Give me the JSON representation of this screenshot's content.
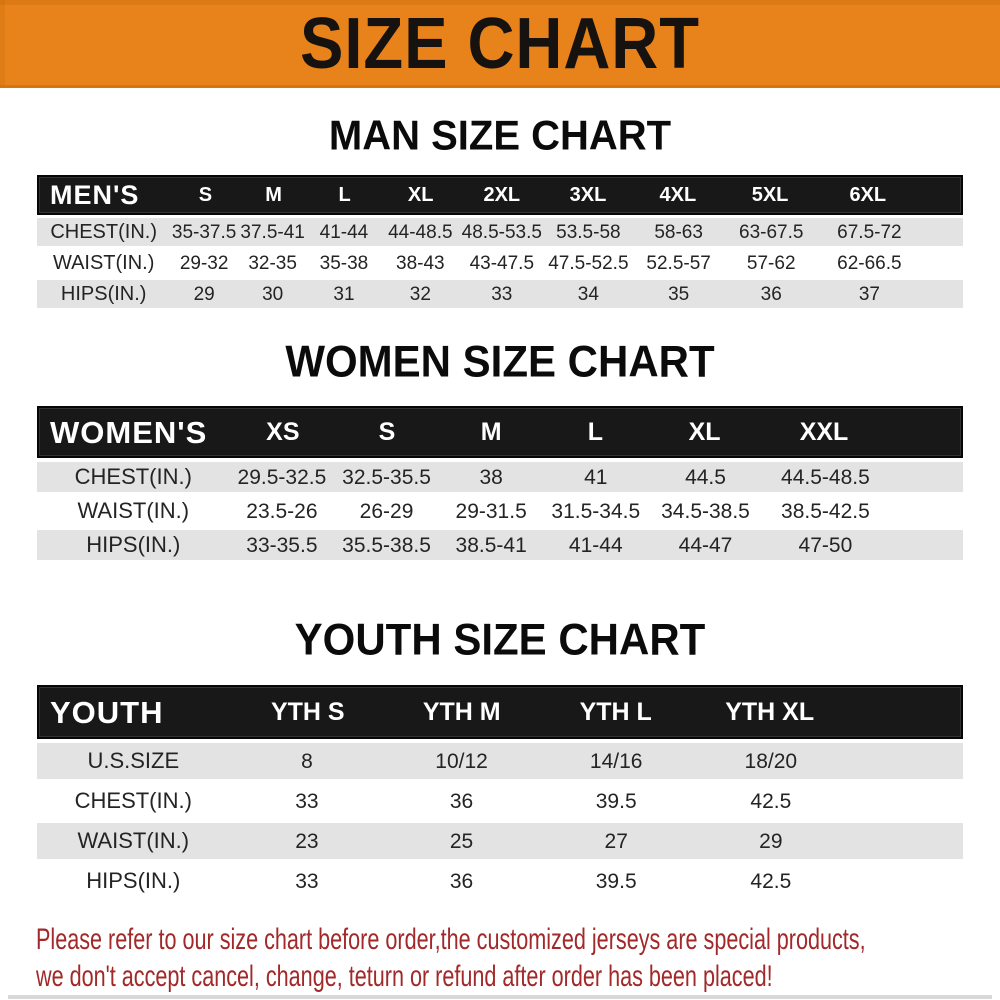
{
  "banner": {
    "title": "SIZE CHART"
  },
  "colors": {
    "banner_orange": "#e8821b",
    "header_black": "#181818",
    "row_gray": "#e3e3e3",
    "disclaimer_red": "#a22929"
  },
  "chart_data": [
    {
      "type": "table",
      "id": "men",
      "title": "MAN SIZE CHART",
      "header_label": "MEN'S",
      "sizes": [
        "S",
        "M",
        "L",
        "XL",
        "2XL",
        "3XL",
        "4XL",
        "5XL",
        "6XL"
      ],
      "rows": [
        {
          "label": "CHEST(IN.)",
          "values": [
            "35-37.5",
            "37.5-41",
            "41-44",
            "44-48.5",
            "48.5-53.5",
            "53.5-58",
            "58-63",
            "63-67.5",
            "67.5-72"
          ]
        },
        {
          "label": "WAIST(IN.)",
          "values": [
            "29-32",
            "32-35",
            "35-38",
            "38-43",
            "43-47.5",
            "47.5-52.5",
            "52.5-57",
            "57-62",
            "62-66.5"
          ]
        },
        {
          "label": "HIPS(IN.)",
          "values": [
            "29",
            "30",
            "31",
            "32",
            "33",
            "34",
            "35",
            "36",
            "37"
          ]
        }
      ]
    },
    {
      "type": "table",
      "id": "women",
      "title": "WOMEN SIZE CHART",
      "header_label": "WOMEN'S",
      "sizes": [
        "XS",
        "S",
        "M",
        "L",
        "XL",
        "XXL"
      ],
      "rows": [
        {
          "label": "CHEST(IN.)",
          "values": [
            "29.5-32.5",
            "32.5-35.5",
            "38",
            "41",
            "44.5",
            "44.5-48.5"
          ]
        },
        {
          "label": "WAIST(IN.)",
          "values": [
            "23.5-26",
            "26-29",
            "29-31.5",
            "31.5-34.5",
            "34.5-38.5",
            "38.5-42.5"
          ]
        },
        {
          "label": "HIPS(IN.)",
          "values": [
            "33-35.5",
            "35.5-38.5",
            "38.5-41",
            "41-44",
            "44-47",
            "47-50"
          ]
        }
      ]
    },
    {
      "type": "table",
      "id": "youth",
      "title": "YOUTH SIZE CHART",
      "header_label": "YOUTH",
      "sizes": [
        "YTH S",
        "YTH M",
        "YTH L",
        "YTH XL"
      ],
      "rows": [
        {
          "label": "U.S.SIZE",
          "values": [
            "8",
            "10/12",
            "14/16",
            "18/20"
          ]
        },
        {
          "label": "CHEST(IN.)",
          "values": [
            "33",
            "36",
            "39.5",
            "42.5"
          ]
        },
        {
          "label": "WAIST(IN.)",
          "values": [
            "23",
            "25",
            "27",
            "29"
          ]
        },
        {
          "label": "HIPS(IN.)",
          "values": [
            "33",
            "36",
            "39.5",
            "42.5"
          ]
        }
      ]
    }
  ],
  "disclaimer": {
    "line1": "Please refer to our size chart before order,the customized jerseys are special products,",
    "line2": "we don't accept cancel, change, teturn or refund after order has been placed!"
  }
}
